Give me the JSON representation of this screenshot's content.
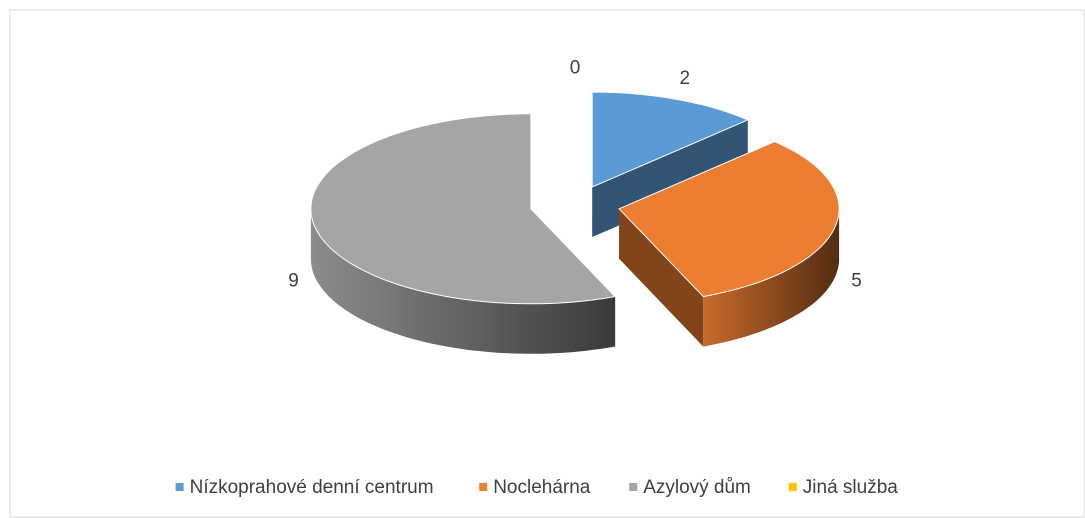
{
  "chart_data": {
    "type": "pie3d",
    "categories": [
      "Nízkoprahové denní centrum",
      "Noclehárna",
      "Azylový dům",
      "Jiná služba"
    ],
    "values": [
      2,
      5,
      9,
      0
    ],
    "colors": [
      "#5b9bd5",
      "#ed7d31",
      "#a5a5a5",
      "#ffc000"
    ],
    "legend": "bottom"
  }
}
